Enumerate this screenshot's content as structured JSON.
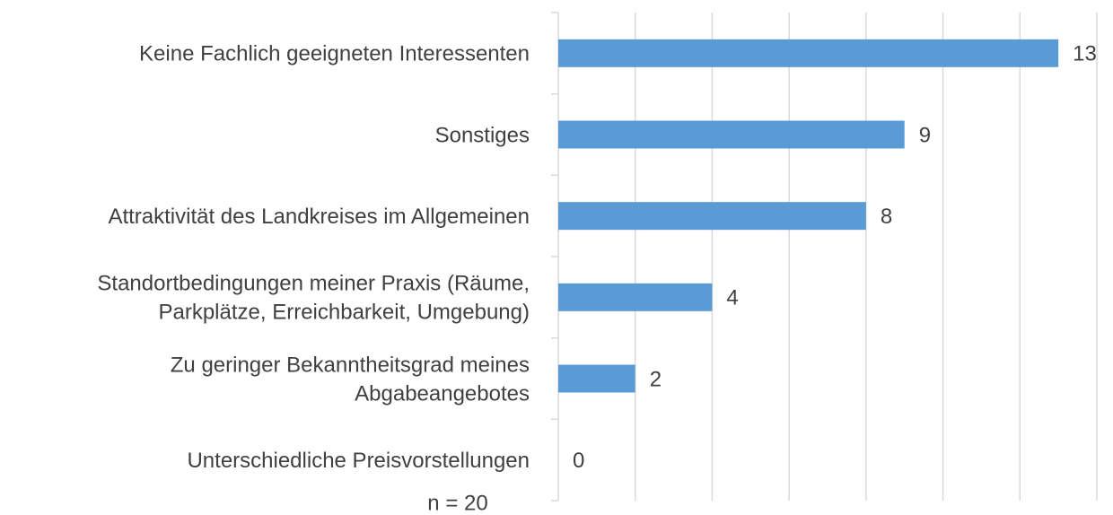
{
  "chart_data": {
    "type": "bar",
    "orientation": "horizontal",
    "categories": [
      [
        "Keine Fachlich geeigneten Interessenten"
      ],
      [
        "Sonstiges"
      ],
      [
        "Attraktivität des Landkreises im Allgemeinen"
      ],
      [
        "Standortbedingungen meiner Praxis (Räume,",
        "Parkplätze, Erreichbarkeit, Umgebung)"
      ],
      [
        "Zu geringer Bekanntheitsgrad meines",
        "Abgabeangebotes"
      ],
      [
        "Unterschiedliche Preisvorstellungen"
      ]
    ],
    "values": [
      13,
      9,
      8,
      4,
      2,
      0
    ],
    "color": "#5b9bd5",
    "xlim": [
      0,
      14
    ],
    "xticks": [
      0,
      2,
      4,
      6,
      8,
      10,
      12,
      14
    ],
    "grid": true,
    "annotation": "n = 20"
  }
}
